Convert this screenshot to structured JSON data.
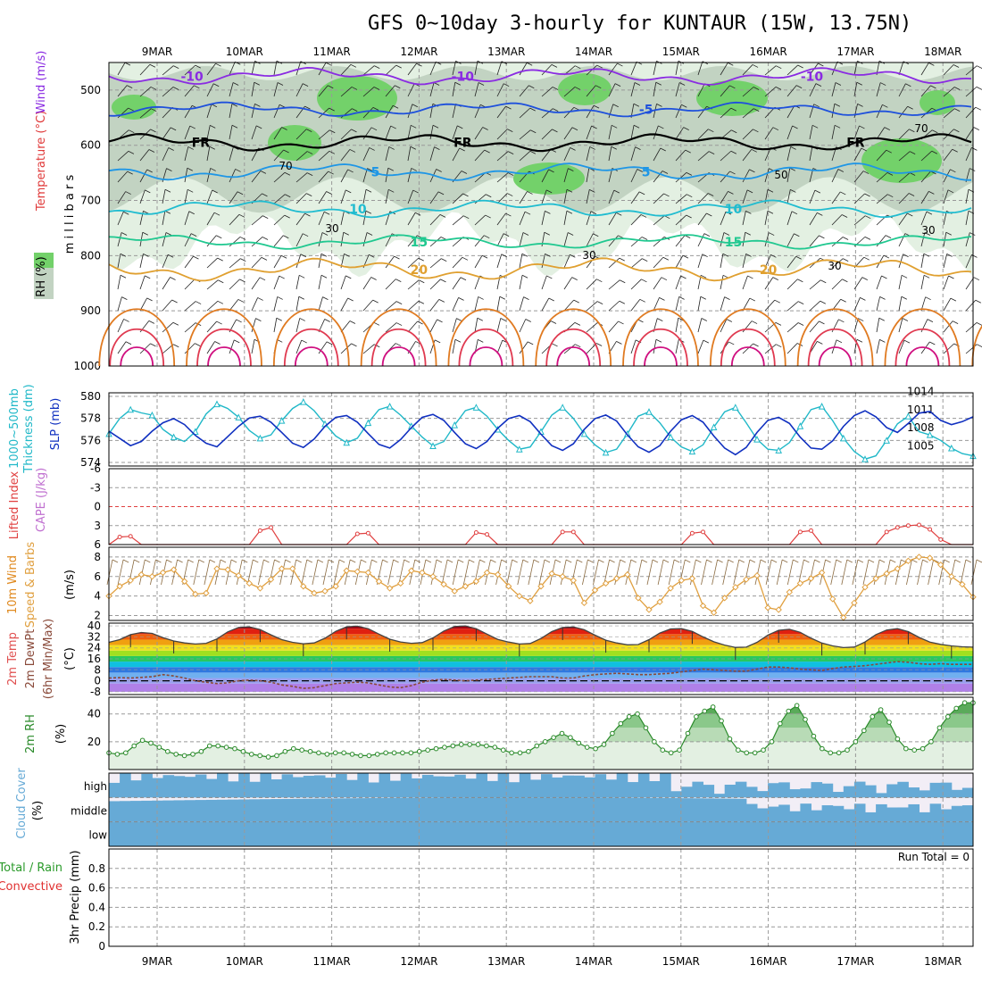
{
  "title": "GFS 0~10day 3-hourly for KUNTAUR (15W, 13.75N)",
  "colors": {
    "rh_light": "#e3f0e2",
    "rh_mid": "#c2d3c2",
    "rh_dark": "#73d16a",
    "temp_neg10": "#8a2be2",
    "temp_neg5": "#1e50dc",
    "temp_0": "#000000",
    "temp_5": "#1e96e6",
    "temp_10": "#20bcd0",
    "temp_15": "#20c890",
    "temp_20": "#e0a030",
    "temp_25": "#e07a20",
    "temp_30": "#e03a50",
    "temp_35": "#d01080",
    "thickness": "#20b8c8",
    "slp": "#1030c0",
    "lifted_index": "#e04040",
    "wind10m": "#e0a040",
    "cloud": "#66aad6",
    "rh2m": "#2a8a2a"
  },
  "chart_data": [
    {
      "id": "upper-air",
      "type": "heatmap",
      "ylabel": "m i l l i b a r s",
      "side_labels": {
        "rh": "RH (%)",
        "temperature": "Temperature (°C)",
        "wind": "Wind (m/s)"
      },
      "y_ticks": [
        500,
        600,
        700,
        800,
        900,
        1000
      ],
      "ylim": [
        450,
        1000
      ],
      "x_ticks": [
        "9MAR",
        "10MAR",
        "11MAR",
        "12MAR",
        "13MAR",
        "14MAR",
        "15MAR",
        "16MAR",
        "17MAR",
        "18MAR"
      ],
      "isotherms": [
        {
          "label": "-10",
          "level_mb": 475,
          "amp": 6,
          "labels_at_days": [
            0.4,
            3.5,
            7.5
          ]
        },
        {
          "label": "-5",
          "level_mb": 535,
          "amp": 5,
          "labels_at_days": [
            5.6
          ]
        },
        {
          "label": "FR",
          "level_mb": 595,
          "amp": 6,
          "labels_at_days": [
            0.5,
            3.5,
            8.0
          ]
        },
        {
          "label": "5",
          "level_mb": 648,
          "amp": 6,
          "labels_at_days": [
            2.5,
            5.6
          ]
        },
        {
          "label": "10",
          "level_mb": 715,
          "amp": 6,
          "labels_at_days": [
            2.3,
            6.6
          ]
        },
        {
          "label": "15",
          "level_mb": 775,
          "amp": 5,
          "labels_at_days": [
            3.0,
            6.6
          ]
        },
        {
          "label": "20",
          "level_mb": 825,
          "amp": 8,
          "labels_at_days": [
            3.0,
            7.0
          ]
        }
      ],
      "rh_contour_labels": [
        "30",
        "30",
        "30",
        "30",
        "50",
        "70",
        "70"
      ]
    },
    {
      "id": "thickness-slp",
      "type": "line",
      "left_label": "1000~500mb Thickness (dm)",
      "right_label": "SLP (mb)",
      "left_ticks": [
        574,
        576,
        578,
        580
      ],
      "right_ticks": [
        1005,
        1008,
        1011,
        1014
      ],
      "series": [
        {
          "name": "1000~500mb Thickness (dm)",
          "axis": "left",
          "values": [
            576.6,
            578.0,
            578.8,
            578.5,
            578.3,
            577.0,
            576.3,
            575.9,
            576.8,
            578.4,
            579.3,
            578.9,
            578.1,
            576.9,
            576.2,
            576.5,
            577.8,
            578.9,
            579.5,
            578.7,
            577.5,
            576.4,
            575.8,
            576.2,
            577.6,
            578.8,
            579.1,
            578.3,
            577.3,
            576.3,
            575.5,
            575.9,
            577.4,
            578.7,
            579.0,
            578.2,
            577.0,
            576.0,
            575.2,
            575.4,
            576.8,
            578.3,
            579.0,
            578.0,
            576.6,
            575.6,
            574.9,
            575.2,
            576.6,
            578.2,
            578.6,
            577.6,
            576.3,
            575.4,
            575.0,
            575.6,
            577.2,
            578.6,
            579.0,
            577.6,
            576.1,
            575.2,
            575.1,
            575.8,
            577.3,
            578.8,
            579.1,
            577.8,
            576.2,
            575.0,
            574.3,
            574.6,
            576.0,
            577.5,
            578.2,
            576.8,
            576.5,
            576.0,
            575.3,
            574.8,
            574.6
          ]
        },
        {
          "name": "SLP (mb)",
          "axis": "right",
          "values": [
            1009.2,
            1008.0,
            1006.8,
            1007.5,
            1009.2,
            1010.6,
            1011.3,
            1010.3,
            1008.5,
            1007.2,
            1006.6,
            1008.3,
            1010.0,
            1011.4,
            1011.7,
            1010.7,
            1009.0,
            1007.2,
            1006.5,
            1007.9,
            1010.0,
            1011.5,
            1011.8,
            1010.7,
            1008.8,
            1007.0,
            1006.4,
            1007.8,
            1009.8,
            1011.5,
            1012.0,
            1011.0,
            1009.0,
            1007.1,
            1006.3,
            1007.5,
            1009.7,
            1011.3,
            1011.8,
            1010.8,
            1008.7,
            1006.8,
            1006.0,
            1007.1,
            1009.5,
            1011.3,
            1011.9,
            1010.9,
            1008.6,
            1006.6,
            1005.7,
            1006.8,
            1009.2,
            1011.1,
            1011.8,
            1010.7,
            1008.4,
            1006.4,
            1005.3,
            1006.5,
            1009.0,
            1011.0,
            1011.5,
            1010.5,
            1008.2,
            1006.4,
            1006.2,
            1007.6,
            1010.0,
            1011.8,
            1012.6,
            1011.6,
            1009.8,
            1009.0,
            1010.5,
            1012.2,
            1012.5,
            1011.0,
            1010.3,
            1010.8,
            1011.6
          ]
        }
      ]
    },
    {
      "id": "lifted-cape",
      "type": "line",
      "left_label": "Lifted Index",
      "left_label2": "CAPE (J/kg)",
      "left_ticks": [
        -6,
        -3,
        0,
        3,
        6
      ],
      "ylim": [
        -6,
        6
      ],
      "series": [
        {
          "name": "Lifted Index",
          "values": [
            6.0,
            4.8,
            4.7,
            6.0,
            6.0,
            6.0,
            6.0,
            6.0,
            6.0,
            6.0,
            6.0,
            6.0,
            6.0,
            6.0,
            3.8,
            3.3,
            6.0,
            6.0,
            6.0,
            6.0,
            6.0,
            6.0,
            6.0,
            4.3,
            4.2,
            6.0,
            6.0,
            6.0,
            6.0,
            6.0,
            6.0,
            6.0,
            6.0,
            6.0,
            4.1,
            4.4,
            6.0,
            6.0,
            6.0,
            6.0,
            6.0,
            6.0,
            4.0,
            4.0,
            6.0,
            6.0,
            6.0,
            6.0,
            6.0,
            6.0,
            6.0,
            6.0,
            6.0,
            6.0,
            4.2,
            4.0,
            6.0,
            6.0,
            6.0,
            6.0,
            6.0,
            6.0,
            6.0,
            6.0,
            4.0,
            3.8,
            6.0,
            6.0,
            6.0,
            6.0,
            6.0,
            6.0,
            4.0,
            3.3,
            3.0,
            2.9,
            3.6,
            5.2,
            6.0,
            6.0,
            6.0
          ]
        }
      ]
    },
    {
      "id": "wind10m",
      "type": "line",
      "left_label": "10m Wind",
      "left_label2": "Speed & Barbs",
      "ylabel": "(m/s)",
      "left_ticks": [
        2,
        4,
        6,
        8
      ],
      "ylim": [
        1.5,
        9
      ],
      "series": [
        {
          "name": "10m Wind Speed",
          "values": [
            4.0,
            5.0,
            5.6,
            6.2,
            6.0,
            6.4,
            6.7,
            5.5,
            4.2,
            4.3,
            6.8,
            6.7,
            6.1,
            5.3,
            4.8,
            5.7,
            6.8,
            6.8,
            5.0,
            4.3,
            4.5,
            5.0,
            6.6,
            6.5,
            6.4,
            5.5,
            4.8,
            5.3,
            6.6,
            6.4,
            6.0,
            5.2,
            4.5,
            5.0,
            5.5,
            6.4,
            6.2,
            5.0,
            4.0,
            3.5,
            5.0,
            6.3,
            6.0,
            5.6,
            3.3,
            4.6,
            5.3,
            5.8,
            6.2,
            3.8,
            2.6,
            3.4,
            4.8,
            5.6,
            5.8,
            3.0,
            2.3,
            3.8,
            4.9,
            5.7,
            6.1,
            2.8,
            2.6,
            4.4,
            5.3,
            5.8,
            6.4,
            3.7,
            1.8,
            3.3,
            4.9,
            5.8,
            6.3,
            6.8,
            7.6,
            8.0,
            7.9,
            7.2,
            6.0,
            5.2,
            3.9
          ]
        }
      ]
    },
    {
      "id": "temp2m",
      "type": "area",
      "left_label": "2m Temp",
      "left_label2": "2m DewPt",
      "left_label3": "(6hr Min/Max)",
      "ylabel": "(°C)",
      "left_ticks": [
        -8,
        0,
        8,
        16,
        24,
        32,
        40
      ],
      "ylim": [
        -10,
        42
      ],
      "series": [
        {
          "name": "2m Temp",
          "values": [
            28.0,
            30.0,
            33.6,
            35.2,
            34.5,
            31.5,
            29.0,
            27.6,
            26.8,
            27.3,
            30.5,
            35.6,
            38.8,
            39.3,
            37.3,
            33.5,
            30.0,
            28.0,
            27.0,
            27.6,
            31.0,
            36.0,
            39.3,
            39.8,
            38.0,
            34.0,
            30.3,
            28.3,
            27.3,
            27.8,
            31.3,
            36.2,
            39.5,
            40.0,
            38.0,
            34.0,
            30.2,
            28.2,
            26.8,
            27.2,
            30.8,
            35.8,
            38.8,
            39.2,
            37.2,
            33.2,
            29.6,
            27.6,
            26.2,
            26.4,
            30.0,
            34.8,
            37.8,
            38.0,
            36.0,
            32.0,
            28.4,
            26.0,
            24.3,
            24.5,
            28.0,
            33.3,
            36.8,
            37.5,
            35.3,
            31.0,
            27.5,
            25.4,
            24.2,
            24.6,
            28.3,
            33.6,
            37.0,
            38.0,
            35.8,
            31.6,
            28.2,
            26.5,
            25.4,
            24.8,
            24.5
          ]
        },
        {
          "name": "2m DewPt",
          "values": [
            2.0,
            2.3,
            2.0,
            2.5,
            3.0,
            4.5,
            3.5,
            2.0,
            0.0,
            -1.0,
            -2.0,
            -1.5,
            0.0,
            0.5,
            0.0,
            -1.0,
            -3.0,
            -4.0,
            -5.5,
            -5.0,
            -3.5,
            -2.0,
            -1.5,
            -1.0,
            -1.5,
            -3.0,
            -4.5,
            -5.0,
            -3.5,
            -1.0,
            0.5,
            1.0,
            0.5,
            0.0,
            0.5,
            1.0,
            1.5,
            2.0,
            2.5,
            3.0,
            3.0,
            3.0,
            2.0,
            2.0,
            3.5,
            4.5,
            5.0,
            5.5,
            5.0,
            4.5,
            4.5,
            5.0,
            5.5,
            6.5,
            7.5,
            8.5,
            8.0,
            7.5,
            7.0,
            7.0,
            8.5,
            10.0,
            10.0,
            9.5,
            8.5,
            8.0,
            7.5,
            9.0,
            10.0,
            10.5,
            11.0,
            12.0,
            13.0,
            14.0,
            13.5,
            12.5,
            12.0,
            12.5,
            12.0,
            12.0,
            12.0
          ]
        }
      ]
    },
    {
      "id": "rh2m",
      "type": "area",
      "left_label": "2m RH",
      "ylabel": "(%)",
      "left_ticks": [
        20,
        40
      ],
      "ylim": [
        0,
        52
      ],
      "series": [
        {
          "name": "2m RH",
          "values": [
            12,
            11,
            12,
            17,
            21,
            19,
            16,
            13,
            11,
            10,
            11,
            13,
            17,
            17,
            16,
            15,
            13,
            11,
            10,
            9,
            10,
            13,
            15,
            14,
            13,
            12,
            11,
            12,
            12,
            11,
            10,
            10,
            11,
            12,
            12,
            12,
            12,
            13,
            14,
            15,
            16,
            17,
            18,
            18,
            18,
            17,
            16,
            14,
            12,
            12,
            13,
            17,
            20,
            23,
            26,
            23,
            19,
            16,
            15,
            18,
            26,
            33,
            38,
            40,
            30,
            20,
            14,
            12,
            14,
            26,
            38,
            42,
            45,
            35,
            22,
            14,
            12,
            12,
            14,
            20,
            33,
            42,
            46,
            36,
            24,
            15,
            12,
            12,
            14,
            20,
            28,
            38,
            43,
            34,
            22,
            15,
            14,
            15,
            20,
            30,
            38,
            44,
            48,
            48
          ]
        }
      ]
    },
    {
      "id": "cloud",
      "type": "heatmap",
      "left_label": "Cloud Cover",
      "ylabel": "(%)",
      "rows": [
        "high",
        "middle",
        "low"
      ]
    },
    {
      "id": "precip",
      "type": "bar",
      "left_label": "Total / Rain",
      "left_label2": "Convective",
      "ylabel": "3hr Precip (mm)",
      "left_ticks": [
        0,
        0.2,
        0.4,
        0.6,
        0.8
      ],
      "ylim": [
        0,
        1
      ],
      "run_total": "Run Total = 0",
      "values": []
    }
  ],
  "x_axis": {
    "labels": [
      "9MAR",
      "10MAR",
      "11MAR",
      "12MAR",
      "13MAR",
      "14MAR",
      "15MAR",
      "16MAR",
      "17MAR",
      "18MAR"
    ]
  }
}
